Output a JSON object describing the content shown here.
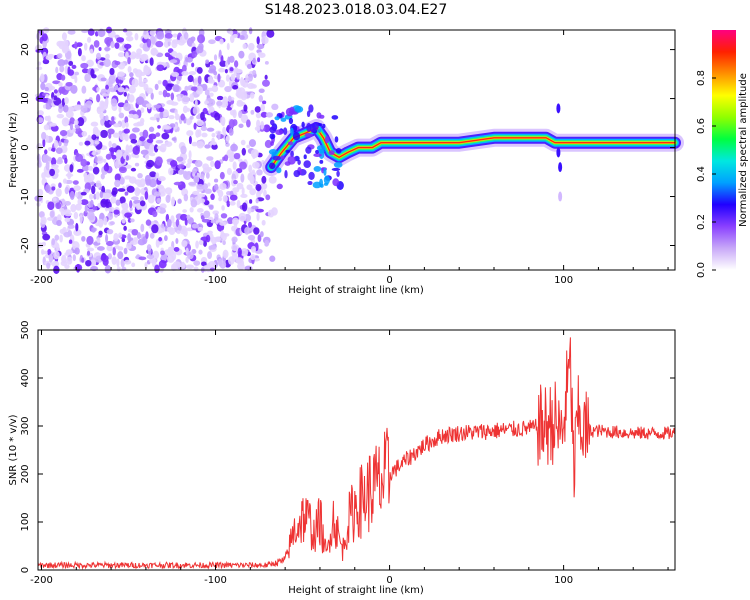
{
  "title": "S148.2023.018.03.04.E27",
  "chart_data": [
    {
      "type": "heatmap",
      "name": "spectrogram",
      "xlabel": "Height of straight line (km)",
      "ylabel": "Frequency (Hz)",
      "xlim": [
        -202,
        164
      ],
      "ylim": [
        -25,
        24
      ],
      "xticks": [
        -200,
        -100,
        0,
        100
      ],
      "yticks": [
        -20,
        -10,
        0,
        10,
        20
      ],
      "noise_region_x": [
        -202,
        -65
      ],
      "ridge": [
        {
          "x": -68,
          "y": -4
        },
        {
          "x": -62,
          "y": -1
        },
        {
          "x": -55,
          "y": 2
        },
        {
          "x": -48,
          "y": 3
        },
        {
          "x": -42,
          "y": 4
        },
        {
          "x": -38,
          "y": 2
        },
        {
          "x": -34,
          "y": -1
        },
        {
          "x": -29,
          "y": -2
        },
        {
          "x": -24,
          "y": -1
        },
        {
          "x": -18,
          "y": 0
        },
        {
          "x": -10,
          "y": 0
        },
        {
          "x": -5,
          "y": 1
        },
        {
          "x": 0,
          "y": 1
        },
        {
          "x": 20,
          "y": 1
        },
        {
          "x": 40,
          "y": 1
        },
        {
          "x": 60,
          "y": 2
        },
        {
          "x": 75,
          "y": 2
        },
        {
          "x": 90,
          "y": 2
        },
        {
          "x": 95,
          "y": 1
        },
        {
          "x": 100,
          "y": 1
        },
        {
          "x": 110,
          "y": 1
        },
        {
          "x": 130,
          "y": 1
        },
        {
          "x": 164,
          "y": 1
        }
      ],
      "colorbar": {
        "label": "Normalized spectral amplitude",
        "range": [
          0,
          1
        ],
        "ticks": [
          "0.0",
          "0.2",
          "0.4",
          "0.6",
          "0.8"
        ],
        "colors": [
          "#ffffff",
          "#c8a8f8",
          "#8a40ff",
          "#2000ff",
          "#00a0ff",
          "#00e8e0",
          "#00ff40",
          "#90ff00",
          "#ffff00",
          "#ff9000",
          "#ff2000",
          "#ff0080"
        ]
      }
    },
    {
      "type": "line",
      "name": "snr",
      "xlabel": "Height of straight line (km)",
      "ylabel": "SNR (10 * v/v)",
      "xlim": [
        -202,
        164
      ],
      "ylim": [
        0,
        500
      ],
      "xticks": [
        -200,
        -100,
        0,
        100
      ],
      "yticks": [
        0,
        100,
        200,
        300,
        400,
        500
      ],
      "color": "#ee3333",
      "series": [
        {
          "name": "SNR",
          "x": [
            -202,
            -150,
            -100,
            -70,
            -60,
            -55,
            -50,
            -46,
            -43,
            -40,
            -38,
            -36,
            -34,
            -32,
            -30,
            -27,
            -24,
            -20,
            -15,
            -10,
            -5,
            0,
            10,
            20,
            30,
            40,
            60,
            80,
            90,
            95,
            98,
            100,
            102,
            104,
            106,
            108,
            112,
            120,
            140,
            164
          ],
          "y": [
            10,
            10,
            10,
            10,
            20,
            80,
            110,
            100,
            70,
            110,
            60,
            30,
            90,
            110,
            80,
            40,
            100,
            130,
            150,
            170,
            180,
            200,
            230,
            260,
            280,
            285,
            290,
            295,
            300,
            310,
            280,
            300,
            380,
            420,
            200,
            320,
            290,
            290,
            285,
            285
          ]
        }
      ]
    }
  ]
}
